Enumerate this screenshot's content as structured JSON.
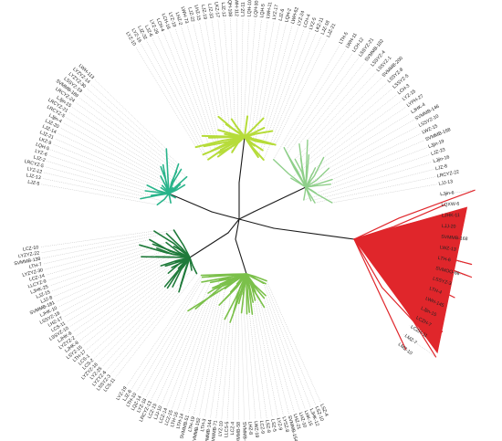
{
  "tree": {
    "colors": {
      "backbone": "#1a1a1a",
      "yellow_green": "#b6dc3a",
      "teal": "#28b48a",
      "light_green": "#8fcf8a",
      "red": "#e0262b",
      "dark_green": "#1f7a3a",
      "green": "#7bc04a",
      "guide": "#9a9a9a"
    },
    "clades": [
      {
        "id": "clade-top",
        "color_key": "yellow_green",
        "leaves": [
          "LYZ-10",
          "LYZ-16",
          "LJZ-32",
          "LJZ-6",
          "LYZ-29",
          "LCH-4",
          "LCH-16",
          "LYZ-19",
          "LHZ-2",
          "LWH-73",
          "LJZ-22",
          "LHZ-15",
          "LJZ-19",
          "LJZ-33",
          "LKZ-17",
          "LJZ-12",
          "LQH-108",
          "LWH-112",
          "LJZ-11",
          "LQH-10",
          "LQH-30",
          "LQH-5",
          "LWH-11",
          "LYZ-17",
          "LJZ-6",
          "LQH-2",
          "LWH-62",
          "LYZ-24",
          "LCH-4",
          "LYZ-5",
          "LKZ-11",
          "LJZ-18",
          "LJZ-21"
        ]
      },
      {
        "id": "clade-left",
        "color_key": "teal",
        "leaves": [
          "LJZ-5",
          "LJZ-13",
          "LYZ-12",
          "LRCYZ-5",
          "LJZ-2",
          "LYZ-6",
          "LQH-5",
          "LKZ-9",
          "LJZ-21",
          "LJZ-14",
          "LJZ-20",
          "LJjin-4",
          "LRCYZ-5",
          "LRCYZ-21",
          "LJjin-15",
          "LRCYZ-24",
          "SVMMB-189",
          "LSSYZ-19",
          "LYZYZ-30",
          "LYZYZ-14",
          "LWH-113"
        ]
      },
      {
        "id": "clade-upper-right",
        "color_key": "light_green",
        "leaves": [
          "LTH-5",
          "LWH-11",
          "LCH-12",
          "LSSYZ-21",
          "SVMMB-182",
          "LSSYZ-4",
          "LSSYZ-1",
          "SVMMB-200",
          "LSSYZ-8",
          "LSSYZ-5",
          "LCH-3",
          "LYZ-15",
          "LYPH-27",
          "LJHK-4",
          "SVMMB-146",
          "LSSYZ-10",
          "LWZ-15",
          "SVMMB-168",
          "LJjin-19",
          "LJZ-23",
          "LJjin-16",
          "LJZ-8",
          "LRCYZ-22",
          "LJJ-13"
        ]
      },
      {
        "id": "clade-right",
        "color_key": "red",
        "leaves": [
          "LJjin-6",
          "LQXW-6",
          "LJHK-11",
          "LJJ-20",
          "SVMMB-168",
          "LWZ-13",
          "LTH-6",
          "SVMOO-86",
          "LSSYZ-3",
          "LTH-4",
          "LWH-145",
          "LJjin-15",
          "LCZH-7",
          "LCZH-11",
          "LMZ-7",
          "LMZ-10"
        ]
      },
      {
        "id": "clade-lower-left",
        "color_key": "dark_green",
        "leaves": [
          "LCS-11",
          "LSSYZ-3",
          "LYZYZ-6",
          "LYZ-25",
          "LYZYZ-16",
          "LCS-2",
          "LCS-1",
          "LTH-17",
          "LSYZ-15",
          "LJHK-8",
          "LYZYZ-2",
          "LJHK-6",
          "LSSYZ-10",
          "LCS-11",
          "LHZ-17",
          "LSSYZ-18",
          "LJHK-10",
          "SVMMB-181",
          "LJZ-8",
          "LJZ-15",
          "LJHK-25",
          "LLCYZ-9",
          "LCZ-14",
          "LYZYZ-30",
          "LTH-7",
          "SVMMB-138",
          "LYZYZ-22",
          "LCZ-10"
        ]
      },
      {
        "id": "clade-bottom",
        "color_key": "green",
        "leaves": [
          "LSZ-4",
          "LSZ-10",
          "LJHK-12",
          "LHK-15",
          "LHZ-10",
          "LHZ-21",
          "SVMMB-154",
          "LYSZ-8",
          "LYZ-9",
          "LSZ-5",
          "LSZ-8",
          "LCZ-9",
          "LWZ-19",
          "LHZ-8",
          "SVMMB-8",
          "SVMMB-58",
          "LCZ-4",
          "LLCS-5",
          "LYZ-10",
          "SVMMB-71",
          "SVMMB-144",
          "LTH-3",
          "SVMMB-152",
          "LTH-19",
          "SVMMB-51",
          "LTH-14",
          "LTH-16",
          "LCZ-15",
          "LCZ-14",
          "LJJ-10",
          "LCZ-15",
          "LRCYZ-13",
          "LYZ-18",
          "LQZ-14",
          "LTH-10",
          "LJZ-6",
          "LYZ-19"
        ]
      }
    ]
  }
}
